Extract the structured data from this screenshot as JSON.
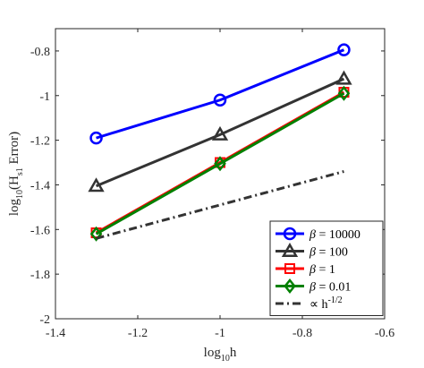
{
  "chart_data": {
    "type": "line",
    "xlabel": {
      "base": "log",
      "sub": "10",
      "rest": "h"
    },
    "ylabel": {
      "base": "log",
      "sub1": "10",
      "mid": "(H",
      "sub2": "s1",
      "rest": " Error)"
    },
    "xlim": [
      -1.4,
      -0.6
    ],
    "ylim": [
      -2,
      -0.7
    ],
    "xticks": [
      -1.4,
      -1.2,
      -1.0,
      -0.8,
      -0.6
    ],
    "xtick_labels": [
      "-1.4",
      "-1.2",
      "-1",
      "-0.8",
      "-0.6"
    ],
    "yticks": [
      -2,
      -1.8,
      -1.6,
      -1.4,
      -1.2,
      -1.0,
      -0.8
    ],
    "ytick_labels": [
      "-2",
      "-1.8",
      "-1.6",
      "-1.4",
      "-1.2",
      "-1",
      "-0.8"
    ],
    "grid": false,
    "legend_position": "bottom-right",
    "x": [
      -1.301,
      -1.0,
      -0.699
    ],
    "series": [
      {
        "name": "β = 10000",
        "legend_sym": "β",
        "legend_rest": " = 10000",
        "marker": "circle",
        "color": "#0000ff",
        "dash": "solid",
        "values": [
          -1.19,
          -1.02,
          -0.795
        ]
      },
      {
        "name": "β = 100",
        "legend_sym": "β",
        "legend_rest": " = 100",
        "marker": "triangle",
        "color": "#333333",
        "dash": "solid",
        "values": [
          -1.405,
          -1.175,
          -0.925
        ]
      },
      {
        "name": "β = 1",
        "legend_sym": "β",
        "legend_rest": " = 1",
        "marker": "square",
        "color": "#ff0000",
        "dash": "solid",
        "values": [
          -1.615,
          -1.3,
          -0.985
        ]
      },
      {
        "name": "β = 0.01",
        "legend_sym": "β",
        "legend_rest": " = 0.01",
        "marker": "diamond",
        "color": "#008000",
        "dash": "solid",
        "values": [
          -1.62,
          -1.305,
          -0.99
        ]
      },
      {
        "name": "∝ h^-1/2",
        "legend_sym": "∝",
        "legend_rest": " h",
        "legend_sup": "-1/2",
        "marker": "none",
        "color": "#333333",
        "dash": "dashdot",
        "x": [
          -1.301,
          -0.699
        ],
        "values": [
          -1.64,
          -1.34
        ]
      }
    ]
  }
}
